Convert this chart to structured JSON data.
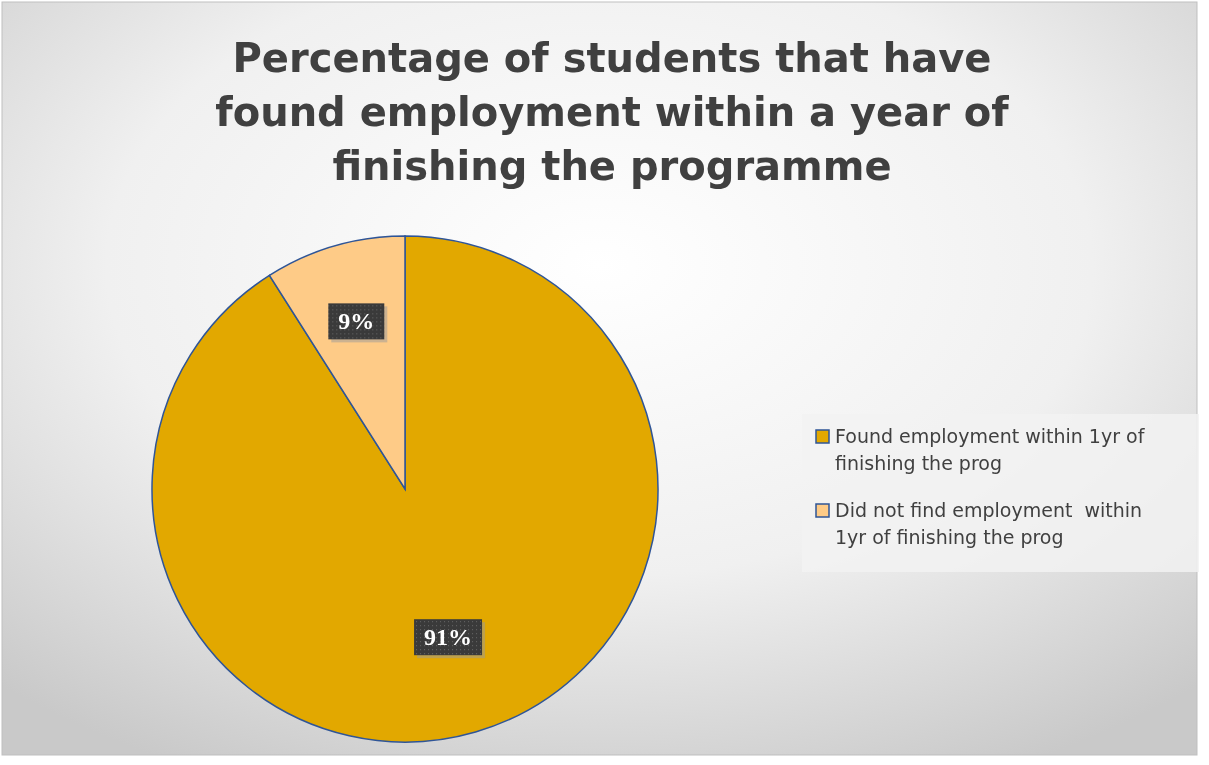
{
  "chart_data": {
    "type": "pie",
    "title": "Percentage of students that have found employment within a year of finishing the programme",
    "categories": [
      "Found employment within 1yr of finishing the prog",
      "Did not find employment  within 1yr of finishing the prog"
    ],
    "values": [
      91,
      9
    ],
    "value_labels": [
      "91%",
      "9%"
    ],
    "colors": [
      "#e2a800",
      "#fecb87"
    ],
    "legend": "right"
  }
}
